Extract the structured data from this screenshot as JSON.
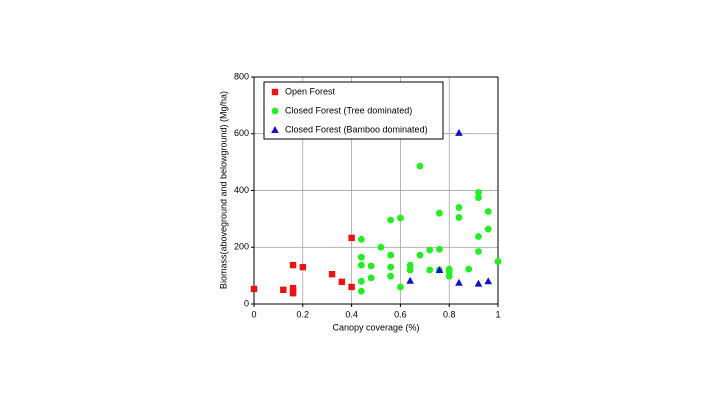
{
  "chart_data": {
    "type": "scatter",
    "x_label": "Canopy coverage (%)",
    "y_label": "Biomass(aboveground and belowground) (Mg/ha)",
    "xlim": [
      0,
      1
    ],
    "xticks": [
      0,
      0.2,
      0.4,
      0.6,
      0.8,
      1
    ],
    "ylim": [
      0,
      800
    ],
    "yticks": [
      0,
      200,
      400,
      600,
      800
    ],
    "grid": true,
    "legend": "upper-left",
    "series": [
      {
        "name": "Open Forest",
        "color": "#ee1111",
        "marker": "square",
        "x": [
          0,
          0.12,
          0.16,
          0.16,
          0.16,
          0.16,
          0.2,
          0.32,
          0.36,
          0.4,
          0.4
        ],
        "values": [
          53,
          50,
          137,
          56,
          45,
          38,
          130,
          105,
          78,
          233,
          60
        ]
      },
      {
        "name": "Closed Forest (Tree dominated)",
        "color": "#22ee22",
        "marker": "circle",
        "x": [
          0.44,
          0.44,
          0.44,
          0.44,
          0.44,
          0.48,
          0.48,
          0.52,
          0.56,
          0.56,
          0.56,
          0.56,
          0.6,
          0.6,
          0.64,
          0.64,
          0.68,
          0.68,
          0.72,
          0.72,
          0.76,
          0.76,
          0.76,
          0.8,
          0.8,
          0.8,
          0.84,
          0.84,
          0.88,
          0.92,
          0.92,
          0.92,
          0.92,
          0.96,
          0.96,
          1
        ],
        "values": [
          228,
          165,
          137,
          80,
          45,
          134,
          92,
          200,
          296,
          172,
          130,
          98,
          303,
          60,
          137,
          120,
          486,
          172,
          190,
          120,
          320,
          193,
          120,
          123,
          113,
          98,
          340,
          305,
          123,
          393,
          375,
          238,
          185,
          326,
          264,
          150
        ]
      },
      {
        "name": "Closed Forest (Bamboo dominated)",
        "color": "#1111cc",
        "marker": "triangle",
        "x": [
          0.64,
          0.76,
          0.84,
          0.84,
          0.92,
          0.96
        ],
        "values": [
          82,
          120,
          603,
          75,
          72,
          80
        ]
      }
    ]
  }
}
